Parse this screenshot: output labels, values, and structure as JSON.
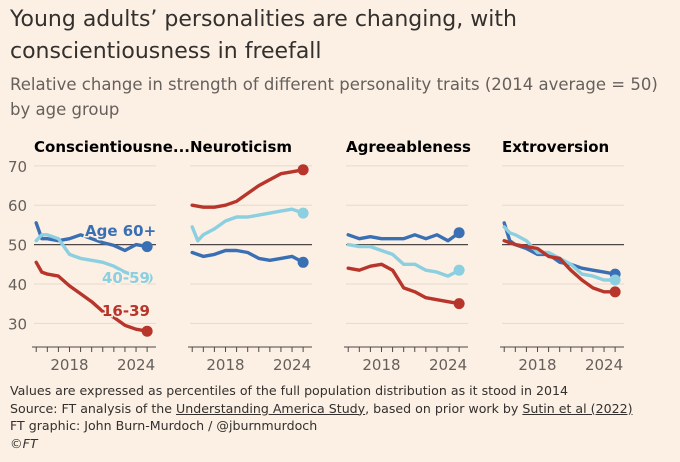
{
  "header": {
    "title": "Young adults’ personalities are changing, with conscientiousness in freefall",
    "subtitle": "Relative change in strength of different personality traits (2014 average = 50) by age group"
  },
  "colors": {
    "background": "#fcf0e4",
    "age_60_plus": "#3a6fb4",
    "age_40_59": "#8ccfe0",
    "age_16_39": "#b7352b",
    "baseline": "#4d4845",
    "grid": "#e6d9ce"
  },
  "footer": {
    "note": "Values are expressed as percentiles of the full population distribution as it stood in 2014",
    "source_prefix": "Source: FT analysis of the ",
    "source_link1": "Understanding America Study",
    "source_mid": ", based on prior work by ",
    "source_link2": "Sutin et al (2022)",
    "credit": "FT graphic: John Burn-Murdoch / @jburnmurdoch",
    "brand": "©FT"
  },
  "chart_data": {
    "type": "line",
    "ylim": [
      25,
      72
    ],
    "yticks": [
      30,
      40,
      50,
      60,
      70
    ],
    "xlim": [
      2014.8,
      2025.8
    ],
    "xticks": [
      2018,
      2024
    ],
    "baseline": 50,
    "grid": true,
    "series_labels": [
      {
        "panel": 0,
        "series": 0,
        "text": "Age 60+"
      },
      {
        "panel": 0,
        "series": 1,
        "text": "40-59"
      },
      {
        "panel": 0,
        "series": 2,
        "text": "16-39"
      }
    ],
    "panels": [
      {
        "title": "Conscientiousne...",
        "series": [
          {
            "name": "60+",
            "x": [
              2015,
              2015.5,
              2016,
              2017,
              2018,
              2019,
              2020,
              2021,
              2022,
              2023,
              2024,
              2025
            ],
            "y": [
              55.5,
              51.5,
              51.5,
              51,
              51.5,
              52.5,
              51.5,
              50.5,
              49.8,
              48.5,
              50,
              49.5
            ]
          },
          {
            "name": "40-59",
            "x": [
              2015,
              2015.5,
              2016,
              2017,
              2018,
              2019,
              2020,
              2021,
              2022,
              2023,
              2024,
              2025
            ],
            "y": [
              51,
              52.5,
              52.5,
              51.5,
              47.5,
              46.5,
              46,
              45.5,
              44.5,
              43,
              42,
              41.5
            ]
          },
          {
            "name": "16-39",
            "x": [
              2015,
              2015.5,
              2016,
              2017,
              2018,
              2019,
              2020,
              2021,
              2022,
              2023,
              2024,
              2025
            ],
            "y": [
              45.5,
              43,
              42.5,
              42,
              39.5,
              37.5,
              35.5,
              33,
              31.5,
              29.5,
              28.5,
              28
            ]
          }
        ]
      },
      {
        "title": "Neuroticism",
        "series": [
          {
            "name": "60+",
            "x": [
              2015,
              2016,
              2017,
              2018,
              2019,
              2020,
              2021,
              2022,
              2023,
              2024,
              2025
            ],
            "y": [
              48,
              47,
              47.5,
              48.5,
              48.5,
              48,
              46.5,
              46,
              46.5,
              47,
              45.5
            ]
          },
          {
            "name": "40-59",
            "x": [
              2015,
              2015.5,
              2016,
              2017,
              2018,
              2019,
              2020,
              2021,
              2022,
              2023,
              2024,
              2025
            ],
            "y": [
              54.5,
              51,
              52.5,
              54,
              56,
              57,
              57,
              57.5,
              58,
              58.5,
              59,
              58
            ]
          },
          {
            "name": "16-39",
            "x": [
              2015,
              2016,
              2017,
              2018,
              2019,
              2020,
              2021,
              2022,
              2023,
              2024,
              2025
            ],
            "y": [
              60,
              59.5,
              59.5,
              60,
              61,
              63,
              65,
              66.5,
              68,
              68.5,
              69
            ]
          }
        ]
      },
      {
        "title": "Agreeableness",
        "series": [
          {
            "name": "60+",
            "x": [
              2015,
              2016,
              2017,
              2018,
              2019,
              2020,
              2021,
              2022,
              2023,
              2024,
              2025
            ],
            "y": [
              52.5,
              51.5,
              52,
              51.5,
              51.5,
              51.5,
              52.5,
              51.5,
              52.5,
              51,
              53
            ]
          },
          {
            "name": "40-59",
            "x": [
              2015,
              2016,
              2017,
              2018,
              2019,
              2020,
              2021,
              2022,
              2023,
              2024,
              2025
            ],
            "y": [
              50,
              49.5,
              49.5,
              48.5,
              47.5,
              45,
              45,
              43.5,
              43,
              42,
              43.5
            ]
          },
          {
            "name": "16-39",
            "x": [
              2015,
              2016,
              2017,
              2018,
              2019,
              2020,
              2021,
              2022,
              2023,
              2024,
              2025
            ],
            "y": [
              44,
              43.5,
              44.5,
              45,
              43.5,
              39,
              38,
              36.5,
              36,
              35.5,
              35
            ]
          }
        ]
      },
      {
        "title": "Extroversion",
        "series": [
          {
            "name": "60+",
            "x": [
              2015,
              2015.5,
              2016,
              2017,
              2018,
              2019,
              2020,
              2021,
              2022,
              2023,
              2024,
              2025
            ],
            "y": [
              55.5,
              51,
              50,
              49,
              47.5,
              47.5,
              45.5,
              45,
              44,
              43.5,
              43,
              42.5
            ]
          },
          {
            "name": "40-59",
            "x": [
              2015,
              2015.5,
              2016,
              2017,
              2018,
              2019,
              2020,
              2021,
              2022,
              2023,
              2024,
              2025
            ],
            "y": [
              54.5,
              53,
              52.5,
              51,
              48,
              48,
              46.5,
              45,
              42.5,
              42,
              41,
              41
            ]
          },
          {
            "name": "16-39",
            "x": [
              2015,
              2016,
              2017,
              2018,
              2019,
              2020,
              2021,
              2022,
              2023,
              2024,
              2025
            ],
            "y": [
              51,
              50,
              49.5,
              49,
              47,
              46.5,
              43.5,
              41,
              39,
              38,
              38
            ]
          }
        ]
      }
    ]
  }
}
